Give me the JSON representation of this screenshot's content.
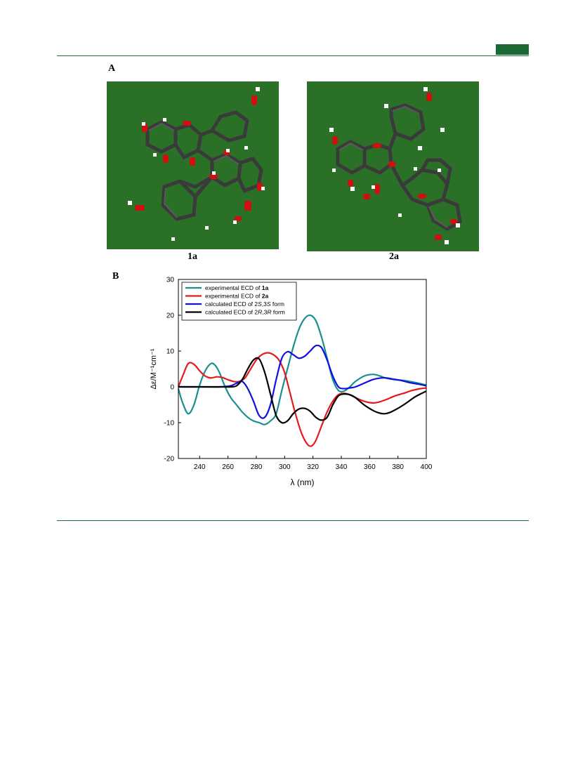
{
  "figure": {
    "panel_a_label": "A",
    "panel_b_label": "B",
    "molecules": [
      {
        "label": "1a"
      },
      {
        "label": "2a"
      }
    ],
    "colors": {
      "mol_background": "#2a7026",
      "header_accent": "#1b6a33",
      "bond": "#3d3d3d",
      "oxygen": "#d01010",
      "hydrogen": "#ffffff"
    }
  },
  "chart_data": {
    "type": "line",
    "xlabel": "λ (nm)",
    "ylabel": "Δε/M⁻¹cm⁻¹",
    "xlim": [
      225,
      400
    ],
    "ylim": [
      -20,
      30
    ],
    "xticks": [
      240,
      260,
      280,
      300,
      320,
      340,
      360,
      380,
      400
    ],
    "yticks": [
      -20,
      -10,
      0,
      10,
      20,
      30
    ],
    "grid": false,
    "legend_position": "top-left",
    "series": [
      {
        "name_parts": [
          {
            "t": "experimental ECD of "
          },
          {
            "t": "1a",
            "b": true
          }
        ],
        "color": "#1a8f8f",
        "x": [
          225,
          228,
          232,
          236,
          240,
          244,
          248,
          251,
          254,
          258,
          262,
          266,
          270,
          274,
          278,
          282,
          286,
          290,
          294,
          298,
          302,
          306,
          310,
          314,
          318,
          322,
          326,
          330,
          334,
          338,
          342,
          346,
          350,
          356,
          362,
          366,
          372,
          378,
          384,
          390,
          396,
          400
        ],
        "y": [
          -0.5,
          -4.5,
          -7.5,
          -5,
          0.5,
          4.5,
          6.5,
          6,
          4,
          0,
          -3,
          -5,
          -7,
          -8.5,
          -9.5,
          -10,
          -10.5,
          -9.5,
          -7.5,
          -1,
          5,
          11,
          16,
          19,
          20,
          18.5,
          14,
          8,
          2,
          -1,
          -1.2,
          0,
          1.5,
          3,
          3.5,
          3.2,
          2.4,
          2,
          1.8,
          1.4,
          0.9,
          0.5
        ]
      },
      {
        "name_parts": [
          {
            "t": "experimental ECD of "
          },
          {
            "t": "2a",
            "b": true
          }
        ],
        "color": "#e41a1c",
        "x": [
          225,
          228,
          232,
          236,
          240,
          244,
          248,
          252,
          256,
          260,
          264,
          268,
          272,
          276,
          280,
          284,
          288,
          292,
          296,
          300,
          304,
          308,
          312,
          316,
          319,
          322,
          326,
          330,
          334,
          338,
          342,
          346,
          350,
          356,
          362,
          366,
          372,
          378,
          384,
          390,
          396,
          400
        ],
        "y": [
          0,
          3,
          6.5,
          6.3,
          4.5,
          3,
          2.5,
          2.8,
          2.6,
          2,
          1.5,
          1.5,
          2.5,
          5,
          7.5,
          9,
          9.5,
          9,
          7.5,
          4,
          -2,
          -8,
          -13,
          -16,
          -16.5,
          -15,
          -11,
          -7,
          -4,
          -2.2,
          -1.8,
          -2.2,
          -3,
          -4,
          -4.5,
          -4.3,
          -3.5,
          -2.5,
          -1.8,
          -1,
          -0.5,
          -0.3
        ]
      },
      {
        "name_parts": [
          {
            "t": "calculated ECD of 2"
          },
          {
            "t": "S",
            "i": true
          },
          {
            "t": ",3"
          },
          {
            "t": "S",
            "i": true
          },
          {
            "t": " form"
          }
        ],
        "color": "#1010e0",
        "x": [
          225,
          240,
          255,
          262,
          266,
          270,
          274,
          278,
          282,
          286,
          290,
          294,
          298,
          302,
          306,
          310,
          314,
          318,
          322,
          326,
          330,
          334,
          338,
          342,
          346,
          350,
          356,
          362,
          368,
          372,
          376,
          382,
          388,
          394,
          400
        ],
        "y": [
          0,
          0,
          0,
          0.3,
          1,
          1.5,
          -0.5,
          -4,
          -8,
          -8.5,
          -5,
          2,
          8,
          9.8,
          9,
          8,
          8.5,
          10,
          11.5,
          11,
          7.5,
          3,
          0,
          -0.5,
          -0.3,
          0,
          1,
          2,
          2.5,
          2.5,
          2.2,
          1.8,
          1.2,
          0.8,
          0.3
        ]
      },
      {
        "name_parts": [
          {
            "t": "calculated ECD of 2"
          },
          {
            "t": "R",
            "i": true
          },
          {
            "t": ",3"
          },
          {
            "t": "R",
            "i": true
          },
          {
            "t": " form"
          }
        ],
        "color": "#000000",
        "x": [
          225,
          240,
          255,
          262,
          266,
          270,
          274,
          278,
          282,
          286,
          290,
          294,
          298,
          302,
          306,
          310,
          314,
          318,
          322,
          326,
          330,
          334,
          338,
          342,
          346,
          350,
          356,
          362,
          366,
          370,
          374,
          380,
          386,
          392,
          400
        ],
        "y": [
          0,
          0,
          0,
          0,
          0.3,
          2,
          5,
          7.5,
          7.8,
          4,
          -2,
          -8,
          -10,
          -9.5,
          -7.5,
          -6.2,
          -6,
          -6.8,
          -8.5,
          -9.3,
          -8.5,
          -5,
          -2.5,
          -2,
          -2.2,
          -3,
          -5,
          -6.5,
          -7.2,
          -7.5,
          -7.2,
          -6,
          -4.5,
          -2.8,
          -1.2
        ]
      }
    ]
  }
}
